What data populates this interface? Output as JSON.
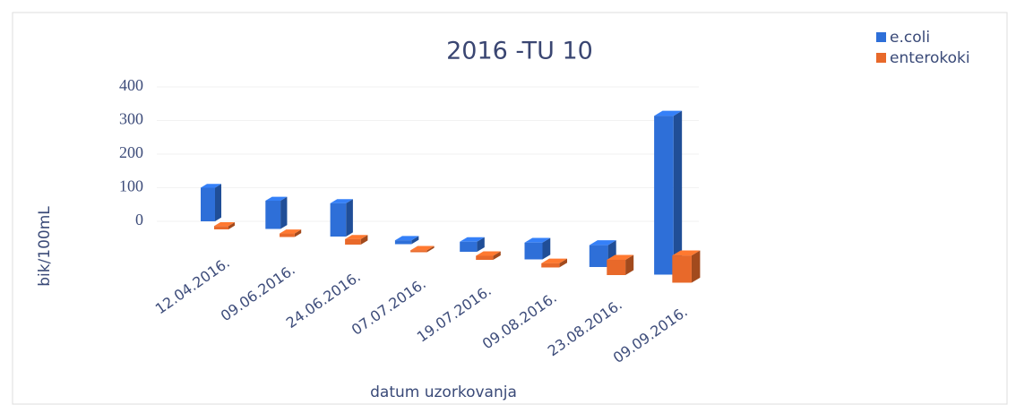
{
  "chart_data": {
    "type": "bar3d",
    "title": "2016 -TU 10",
    "x_label": "datum uzorkovanja",
    "y_label": "bik/100mL",
    "categories": [
      "12.04.2016.",
      "09.06.2016.",
      "24.06.2016.",
      "07.07.2016.",
      "19.07.2016.",
      "09.08.2016.",
      "23.08.2016.",
      "09.09.2016."
    ],
    "series": [
      {
        "name": "e.coli",
        "color": "#2e6fd8",
        "values": [
          100,
          80,
          90,
          10,
          25,
          40,
          50,
          350
        ]
      },
      {
        "name": "enterokoki",
        "color": "#e8692a",
        "values": [
          10,
          10,
          15,
          5,
          10,
          10,
          35,
          60
        ]
      }
    ],
    "ylim": [
      0,
      400
    ],
    "yticks": [
      0,
      100,
      200,
      300,
      400
    ],
    "legend": "top-right"
  }
}
